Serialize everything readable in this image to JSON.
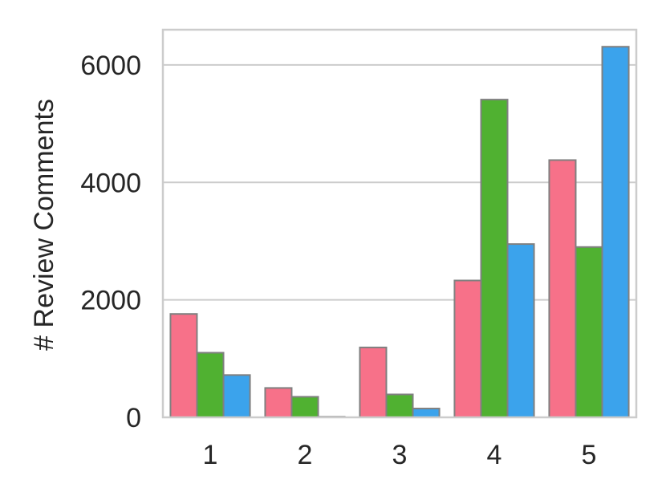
{
  "chart_data": {
    "type": "bar",
    "title": "",
    "xlabel": "",
    "ylabel": "# Review Comments",
    "categories": [
      "1",
      "2",
      "3",
      "4",
      "5"
    ],
    "series": [
      {
        "color": "#f77189",
        "values": [
          1760,
          500,
          1190,
          2330,
          4380
        ]
      },
      {
        "color": "#50b131",
        "values": [
          1100,
          350,
          390,
          5410,
          2900
        ]
      },
      {
        "color": "#3ba3ec",
        "values": [
          720,
          10,
          150,
          2950,
          6310
        ]
      }
    ],
    "ylim": [
      0,
      6600
    ],
    "yticks": [
      0,
      2000,
      4000,
      6000
    ],
    "grid": true,
    "legend": "none"
  }
}
